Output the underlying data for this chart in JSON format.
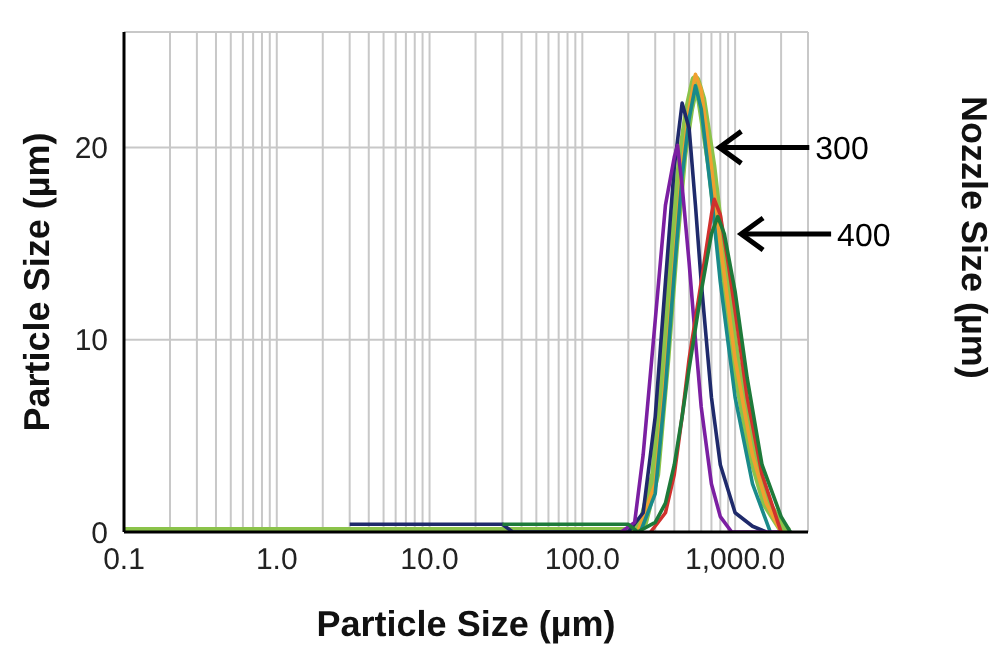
{
  "chart_data": {
    "type": "line",
    "xlabel": "Particle Size (µm)",
    "ylabel": "Particle Size (µm)",
    "y2label": "Nozzle Size (µm)",
    "log": "x",
    "grid": true,
    "marker": "none",
    "line_style": "solid",
    "xlim": [
      0.1,
      3000
    ],
    "ylim": [
      0,
      26
    ],
    "yticks": [
      0,
      10,
      20
    ],
    "xticks": [
      {
        "value": 0.1,
        "label": "0.1"
      },
      {
        "value": 0.2,
        "label": null
      },
      {
        "value": 0.3,
        "label": null
      },
      {
        "value": 0.4,
        "label": null
      },
      {
        "value": 0.5,
        "label": null
      },
      {
        "value": 0.6,
        "label": null
      },
      {
        "value": 0.7,
        "label": null
      },
      {
        "value": 0.8,
        "label": null
      },
      {
        "value": 0.9,
        "label": null
      },
      {
        "value": 1,
        "label": "1.0"
      },
      {
        "value": 2,
        "label": null
      },
      {
        "value": 3,
        "label": null
      },
      {
        "value": 4,
        "label": null
      },
      {
        "value": 5,
        "label": null
      },
      {
        "value": 6,
        "label": null
      },
      {
        "value": 7,
        "label": null
      },
      {
        "value": 8,
        "label": null
      },
      {
        "value": 9,
        "label": null
      },
      {
        "value": 10,
        "label": "10.0"
      },
      {
        "value": 20,
        "label": null
      },
      {
        "value": 30,
        "label": null
      },
      {
        "value": 40,
        "label": null
      },
      {
        "value": 50,
        "label": null
      },
      {
        "value": 60,
        "label": null
      },
      {
        "value": 70,
        "label": null
      },
      {
        "value": 80,
        "label": null
      },
      {
        "value": 90,
        "label": null
      },
      {
        "value": 100,
        "label": "100.0"
      },
      {
        "value": 200,
        "label": null
      },
      {
        "value": 300,
        "label": null
      },
      {
        "value": 400,
        "label": null
      },
      {
        "value": 500,
        "label": null
      },
      {
        "value": 600,
        "label": null
      },
      {
        "value": 700,
        "label": null
      },
      {
        "value": 800,
        "label": null
      },
      {
        "value": 900,
        "label": null
      },
      {
        "value": 1000,
        "label": "1,000.0"
      },
      {
        "value": 2000,
        "label": null
      }
    ],
    "series": [
      {
        "color": "#8bc34a",
        "x": [
          0.1,
          200,
          250,
          300,
          350,
          400,
          450,
          500,
          550,
          600,
          700,
          800,
          1000,
          1300,
          1600,
          2000,
          2200
        ],
        "values": [
          0,
          0,
          0.5,
          3,
          9,
          15,
          19.5,
          22,
          23.5,
          22.5,
          19,
          15,
          9,
          4,
          1.5,
          0.3,
          0
        ]
      },
      {
        "color": "#f0a030",
        "x": [
          230,
          300,
          350,
          400,
          450,
          500,
          550,
          600,
          700,
          800,
          1000,
          1300,
          1600,
          2000
        ],
        "values": [
          0,
          2.5,
          8,
          14,
          19,
          22,
          23.8,
          23,
          19,
          15,
          9,
          4,
          1.5,
          0
        ]
      },
      {
        "color": "#1a8a8a",
        "x": [
          240,
          300,
          350,
          400,
          450,
          500,
          550,
          600,
          700,
          800,
          1000,
          1300,
          1700
        ],
        "values": [
          0,
          2,
          7.5,
          13.5,
          18.5,
          21.5,
          23.2,
          22,
          17.5,
          13,
          7,
          2.5,
          0
        ]
      },
      {
        "color": "#1f2a6b",
        "x": [
          3,
          30,
          35,
          200,
          250,
          300,
          350,
          400,
          450,
          500,
          550,
          600,
          700,
          800,
          1000,
          1300,
          1600
        ],
        "values": [
          0.4,
          0.4,
          0,
          0,
          1,
          6,
          13,
          19,
          22.3,
          21,
          17,
          13,
          7,
          3.5,
          1,
          0.3,
          0
        ]
      },
      {
        "color": "#7b1fa2",
        "x": [
          180,
          220,
          250,
          300,
          350,
          400,
          420,
          450,
          500,
          550,
          600,
          700,
          800,
          950,
          2000
        ],
        "values": [
          0,
          0.5,
          4,
          11,
          17,
          19.5,
          20.1,
          18,
          14,
          10,
          6.5,
          2.5,
          0.8,
          0,
          0
        ]
      },
      {
        "color": "#d0312d",
        "x": [
          280,
          350,
          400,
          450,
          500,
          600,
          700,
          730,
          800,
          900,
          1000,
          1200,
          1500,
          2000
        ],
        "values": [
          0,
          1,
          3,
          6,
          9,
          13,
          16.5,
          17.3,
          16.5,
          14,
          11.5,
          7,
          3,
          0
        ]
      },
      {
        "color": "#1e7a3a",
        "x": [
          30,
          200,
          230,
          300,
          350,
          400,
          450,
          500,
          600,
          700,
          770,
          850,
          1000,
          1200,
          1500,
          2000,
          2300
        ],
        "values": [
          0.4,
          0.4,
          0,
          0.5,
          1.5,
          3.5,
          6,
          8.5,
          12.5,
          15.5,
          16.4,
          15.5,
          12.5,
          8,
          3.5,
          0.8,
          0
        ]
      }
    ],
    "annotations": [
      {
        "text": "300",
        "x": 720,
        "y": 20
      },
      {
        "text": "400",
        "x": 1000,
        "y": 15.5
      }
    ]
  }
}
